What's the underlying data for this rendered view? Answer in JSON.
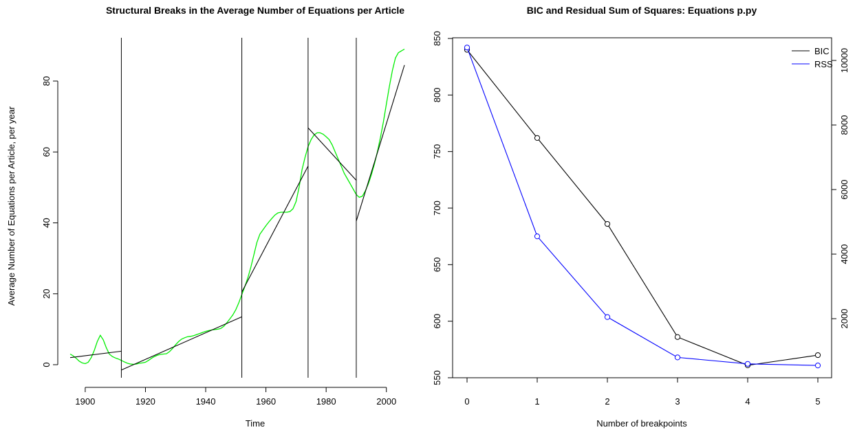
{
  "chart_data": [
    {
      "type": "line",
      "title": "Structural Breaks in the Average Number of Equations per Article",
      "xlabel": "Time",
      "ylabel": "Average Number of Equations per Article, per year",
      "xlim": [
        1895,
        2006
      ],
      "ylim": [
        0,
        90
      ],
      "xticks": [
        1900,
        1920,
        1940,
        1960,
        1980,
        2000
      ],
      "yticks": [
        0,
        20,
        40,
        60,
        80
      ],
      "grid": false,
      "colors": {
        "data": "#00ee00",
        "fit": "#000000",
        "breaks": "#000000"
      },
      "series": [
        {
          "role": "observed",
          "x": [
            1895,
            1896,
            1897,
            1898,
            1899,
            1900,
            1901,
            1902,
            1903,
            1904,
            1905,
            1906,
            1907,
            1908,
            1909,
            1910,
            1911,
            1912,
            1913,
            1914,
            1915,
            1916,
            1917,
            1918,
            1919,
            1920,
            1921,
            1922,
            1923,
            1924,
            1925,
            1926,
            1927,
            1928,
            1929,
            1930,
            1931,
            1932,
            1933,
            1934,
            1935,
            1936,
            1937,
            1938,
            1939,
            1940,
            1941,
            1942,
            1943,
            1944,
            1945,
            1946,
            1947,
            1948,
            1949,
            1950,
            1951,
            1952,
            1953,
            1954,
            1955,
            1956,
            1957,
            1958,
            1959,
            1960,
            1961,
            1962,
            1963,
            1964,
            1965,
            1966,
            1967,
            1968,
            1969,
            1970,
            1971,
            1972,
            1973,
            1974,
            1975,
            1976,
            1977,
            1978,
            1979,
            1980,
            1981,
            1982,
            1983,
            1984,
            1985,
            1986,
            1987,
            1988,
            1989,
            1990,
            1991,
            1992,
            1993,
            1994,
            1995,
            1996,
            1997,
            1998,
            1999,
            2000,
            2001,
            2002,
            2003,
            2004,
            2005,
            2006
          ],
          "y": [
            3.0,
            2.5,
            1.8,
            1.0,
            0.5,
            0.3,
            0.7,
            2.0,
            4.0,
            6.5,
            8.3,
            7.0,
            4.8,
            3.0,
            2.3,
            1.9,
            1.6,
            1.2,
            0.8,
            0.4,
            0.2,
            0.1,
            0.2,
            0.4,
            0.5,
            0.7,
            1.2,
            1.8,
            2.3,
            2.7,
            2.9,
            3.0,
            3.1,
            3.7,
            4.6,
            5.6,
            6.5,
            7.2,
            7.6,
            7.9,
            8.0,
            8.2,
            8.5,
            8.8,
            9.1,
            9.4,
            9.6,
            9.8,
            9.9,
            10.0,
            10.2,
            10.8,
            11.8,
            12.9,
            14.0,
            15.5,
            17.5,
            19.8,
            22.0,
            24.5,
            27.5,
            31.0,
            34.5,
            36.8,
            38.0,
            39.2,
            40.3,
            41.3,
            42.2,
            42.8,
            43.0,
            43.0,
            43.0,
            43.2,
            44.0,
            46.0,
            50.0,
            55.0,
            58.5,
            61.5,
            63.5,
            64.8,
            65.4,
            65.4,
            65.0,
            64.3,
            63.5,
            62.0,
            60.0,
            58.0,
            56.0,
            54.0,
            52.5,
            51.0,
            49.5,
            48.0,
            47.2,
            47.5,
            49.0,
            51.0,
            53.5,
            56.5,
            60.0,
            64.0,
            68.5,
            73.5,
            78.5,
            83.0,
            86.5,
            88.0,
            88.5,
            89.0
          ]
        }
      ],
      "fitted_segments": [
        {
          "x": [
            1895,
            1912
          ],
          "y": [
            2.0,
            3.8
          ]
        },
        {
          "x": [
            1912,
            1952
          ],
          "y": [
            -1.5,
            13.5
          ]
        },
        {
          "x": [
            1952,
            1974
          ],
          "y": [
            20.5,
            56.0
          ]
        },
        {
          "x": [
            1974,
            1990
          ],
          "y": [
            66.8,
            52.0
          ]
        },
        {
          "x": [
            1990,
            2006
          ],
          "y": [
            40.5,
            84.5
          ]
        }
      ],
      "breakpoints_x": [
        1912,
        1952,
        1974,
        1990
      ]
    },
    {
      "type": "line",
      "title": "BIC and Residual Sum of Squares: Equations p.py",
      "xlabel": "Number of breakpoints",
      "ylabel": "",
      "xlim": [
        0,
        5
      ],
      "ylim": [
        550,
        850
      ],
      "y2lim": [
        0,
        11000
      ],
      "xticks": [
        0,
        1,
        2,
        3,
        4,
        5
      ],
      "yticks": [
        550,
        600,
        650,
        700,
        750,
        800,
        850
      ],
      "y2ticks": [
        2000,
        4000,
        6000,
        8000,
        10000
      ],
      "grid": false,
      "legend_position": "top-right",
      "series": [
        {
          "name": "BIC",
          "axis": "left",
          "color": "#000000",
          "x": [
            0,
            1,
            2,
            3,
            4,
            5
          ],
          "values": [
            840,
            762,
            686,
            586,
            561,
            570
          ]
        },
        {
          "name": "RSS",
          "axis": "right",
          "color": "#0000ff",
          "x": [
            0,
            1,
            2,
            3,
            4,
            5
          ],
          "values": [
            10400,
            4550,
            2050,
            800,
            600,
            550
          ]
        }
      ]
    }
  ]
}
